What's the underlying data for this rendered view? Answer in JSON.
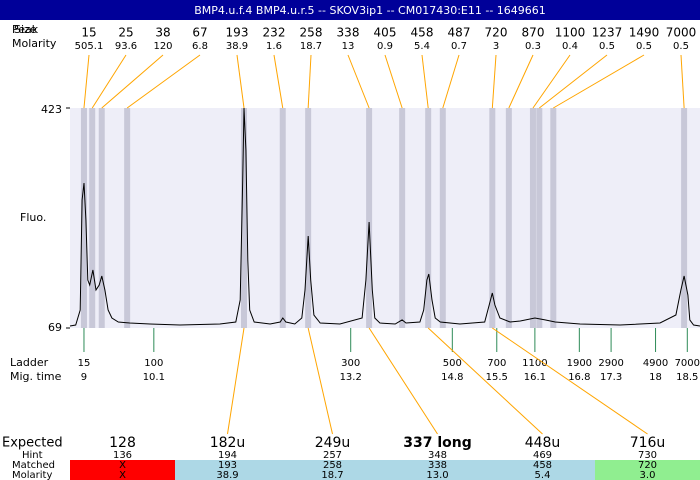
{
  "header": {
    "title": "BMP4.u.f.4  BMP4.u.r.5 -- SKOV3ip1 -- CM017430:E11 -- 1649661"
  },
  "chart_data": {
    "type": "electropherogram",
    "ylabel": "Fluo.",
    "ylim": [
      69,
      423
    ],
    "yticks": [
      69,
      423
    ],
    "xlim": [
      8.78,
      18.7
    ],
    "peak_header": "Peak",
    "size_header": "Size",
    "molarity_header": "Molarity",
    "plot_color": "#eeeef8",
    "band_color": "#c8c8d8",
    "trace_color": "#000000",
    "link_color": "#ffa500",
    "ladder_color": "#2e8b57",
    "peaks": [
      {
        "size": 15,
        "molarity": 505.1,
        "time": 9.0
      },
      {
        "size": 25,
        "molarity": 93.6,
        "time": 9.13
      },
      {
        "size": 38,
        "molarity": 120,
        "time": 9.28
      },
      {
        "size": 67,
        "molarity": 6.8,
        "time": 9.68
      },
      {
        "size": 193,
        "molarity": 38.9,
        "time": 11.52
      },
      {
        "size": 232,
        "molarity": 1.6,
        "time": 12.13
      },
      {
        "size": 258,
        "molarity": 18.7,
        "time": 12.53
      },
      {
        "size": 338,
        "molarity": 13,
        "time": 13.49
      },
      {
        "size": 405,
        "molarity": 0.9,
        "time": 14.01
      },
      {
        "size": 458,
        "molarity": 5.4,
        "time": 14.42
      },
      {
        "size": 487,
        "molarity": 0.7,
        "time": 14.65
      },
      {
        "size": 720,
        "molarity": 3,
        "time": 15.43
      },
      {
        "size": 870,
        "molarity": 0.3,
        "time": 15.69
      },
      {
        "size": 1100,
        "molarity": 0.4,
        "time": 16.07
      },
      {
        "size": 1237,
        "molarity": 0.5,
        "time": 16.17
      },
      {
        "size": 1490,
        "molarity": 0.5,
        "time": 16.39
      },
      {
        "size": 7000,
        "molarity": 0.5,
        "time": 18.45
      }
    ],
    "trace": {
      "x": [
        8.78,
        8.87,
        8.94,
        8.97,
        9.0,
        9.03,
        9.06,
        9.09,
        9.14,
        9.19,
        9.24,
        9.28,
        9.33,
        9.38,
        9.44,
        9.54,
        9.72,
        10.04,
        10.51,
        11.14,
        11.39,
        11.46,
        11.5,
        11.52,
        11.55,
        11.58,
        11.61,
        11.68,
        11.93,
        12.09,
        12.13,
        12.18,
        12.32,
        12.43,
        12.48,
        12.53,
        12.57,
        12.62,
        12.72,
        13.03,
        13.38,
        13.44,
        13.49,
        13.54,
        13.58,
        13.66,
        13.9,
        14.01,
        14.07,
        14.29,
        14.35,
        14.4,
        14.43,
        14.48,
        14.53,
        14.61,
        14.92,
        15.31,
        15.38,
        15.43,
        15.47,
        15.55,
        15.71,
        15.87,
        16.1,
        16.26,
        16.42,
        16.81,
        17.44,
        18.07,
        18.32,
        18.4,
        18.45,
        18.51,
        18.54,
        18.6,
        18.7
      ],
      "y": [
        72.2,
        73.8,
        98.0,
        275.0,
        302.3,
        242.8,
        146.2,
        138.2,
        162.3,
        130.1,
        138.2,
        152.7,
        130.1,
        98.0,
        85.1,
        78.7,
        77.0,
        75.4,
        73.8,
        75.4,
        78.7,
        114.1,
        307.1,
        423.0,
        355.4,
        178.4,
        98.0,
        78.7,
        75.4,
        78.7,
        85.1,
        78.7,
        75.4,
        85.1,
        130.1,
        217.0,
        146.2,
        89.9,
        77.0,
        75.4,
        85.1,
        146.2,
        239.6,
        130.1,
        85.1,
        77.0,
        75.4,
        82.0,
        77.0,
        78.7,
        98.0,
        146.2,
        155.9,
        114.1,
        85.1,
        78.7,
        75.4,
        78.7,
        106.0,
        125.3,
        106.0,
        85.1,
        78.7,
        80.3,
        85.1,
        82.0,
        78.7,
        75.4,
        73.8,
        77.0,
        89.9,
        130.1,
        152.7,
        122.0,
        82.0,
        73.8,
        72.2
      ]
    },
    "ladder": {
      "label": "Ladder",
      "time_label": "Mig. time",
      "sizes": [
        15,
        100,
        300,
        500,
        700,
        1100,
        1900,
        2900,
        4900,
        7000
      ],
      "times": [
        9,
        10.1,
        13.2,
        14.8,
        15.5,
        16.1,
        16.8,
        17.3,
        18,
        18.5
      ]
    }
  },
  "table": {
    "row_labels": [
      "Expected",
      "Hint",
      "Matched",
      "Molarity"
    ],
    "columns": [
      {
        "expected": "128",
        "hint": 136,
        "matched": "X",
        "molarity": "X",
        "color": "#ff0000"
      },
      {
        "expected": "182u",
        "hint": 194,
        "matched": "193",
        "molarity": "38.9",
        "color": "#add8e6"
      },
      {
        "expected": "249u",
        "hint": 257,
        "matched": "258",
        "molarity": "18.7",
        "color": "#add8e6"
      },
      {
        "expected": "337 long",
        "hint": 348,
        "matched": "338",
        "molarity": "13.0",
        "color": "#add8e6"
      },
      {
        "expected": "448u",
        "hint": 469,
        "matched": "458",
        "molarity": "5.4",
        "color": "#add8e6"
      },
      {
        "expected": "716u",
        "hint": 730,
        "matched": "720",
        "molarity": "3.0",
        "color": "#90ee90"
      }
    ]
  }
}
